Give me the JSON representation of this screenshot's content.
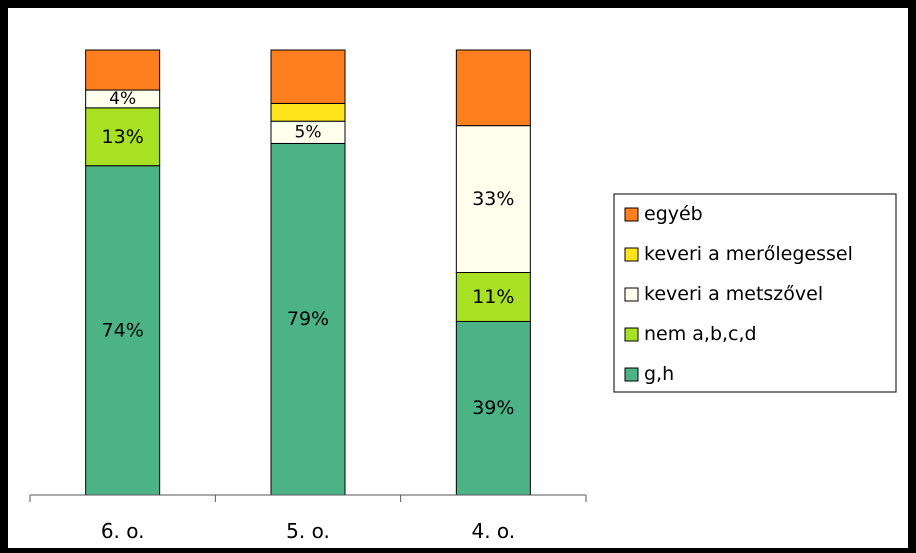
{
  "chart_data": {
    "type": "bar",
    "stacked": true,
    "categories": [
      "6. o.",
      "5. o.",
      "4. o."
    ],
    "ylim": [
      0,
      100
    ],
    "grid": false,
    "legend_position": "right",
    "series": [
      {
        "name": "g,h",
        "color": "#4CB386",
        "values": [
          74,
          79,
          39
        ],
        "labels": [
          "74%",
          "79%",
          "39%"
        ]
      },
      {
        "name": "nem a,b,c,d",
        "color": "#A8E024",
        "values": [
          13,
          0,
          11
        ],
        "labels": [
          "13%",
          "",
          "11%"
        ]
      },
      {
        "name": "keveri a metszővel",
        "color": "#FFFFEE",
        "values": [
          4,
          5,
          33
        ],
        "labels": [
          "4%",
          "5%",
          "33%"
        ]
      },
      {
        "name": "keveri a merőlegessel",
        "color": "#FFE31A",
        "values": [
          0,
          4,
          0
        ],
        "labels": [
          "",
          "",
          ""
        ]
      },
      {
        "name": "egyéb",
        "color": "#FF7F1F",
        "values": [
          9,
          12,
          17
        ],
        "labels": [
          "",
          "",
          ""
        ]
      }
    ],
    "legend_order": [
      "egyéb",
      "keveri a merőlegessel",
      "keveri a metszővel",
      "nem a,b,c,d",
      "g,h"
    ]
  }
}
